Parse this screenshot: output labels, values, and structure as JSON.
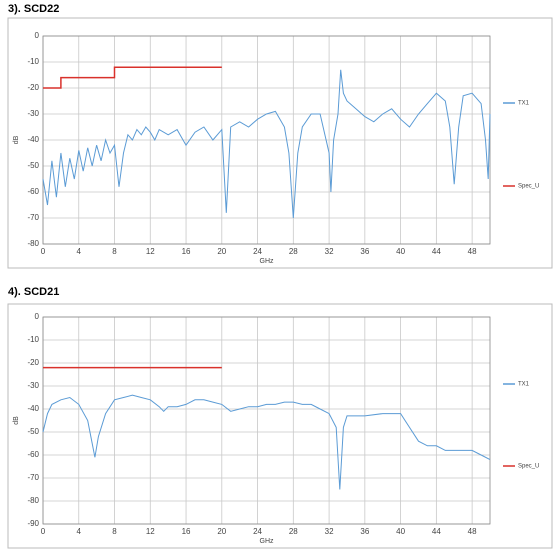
{
  "chart_data": [
    {
      "type": "line",
      "title": "3). SCD22",
      "x_label": "GHz",
      "y_label": "dB",
      "xlim": [
        0,
        50
      ],
      "xticks": [
        0,
        4,
        8,
        12,
        16,
        20,
        24,
        28,
        32,
        36,
        40,
        44,
        48
      ],
      "ylim": [
        -80,
        0
      ],
      "yticks": [
        0,
        -10,
        -20,
        -30,
        -40,
        -50,
        -60,
        -70,
        -80
      ],
      "grid": true,
      "series": [
        {
          "name": "TX1",
          "color": "#5b9bd5",
          "x": [
            0,
            0.5,
            1,
            1.5,
            2,
            2.5,
            3,
            3.5,
            4,
            4.5,
            5,
            5.5,
            6,
            6.5,
            7,
            7.5,
            8,
            8.5,
            9,
            9.5,
            10,
            10.5,
            11,
            11.5,
            12,
            12.5,
            13,
            14,
            15,
            16,
            17,
            18,
            19,
            20,
            20.5,
            21,
            22,
            23,
            24,
            25,
            26,
            27,
            27.5,
            28,
            28.5,
            29,
            30,
            31,
            32,
            32.2,
            32.5,
            33,
            33.3,
            33.6,
            34,
            35,
            36,
            37,
            38,
            39,
            40,
            41,
            42,
            43,
            44,
            45,
            45.5,
            46,
            46.5,
            47,
            48,
            49,
            49.5,
            49.8,
            50
          ],
          "values": [
            -55,
            -65,
            -48,
            -62,
            -45,
            -58,
            -47,
            -55,
            -44,
            -52,
            -43,
            -50,
            -42,
            -48,
            -40,
            -45,
            -42,
            -58,
            -45,
            -38,
            -40,
            -36,
            -38,
            -35,
            -37,
            -40,
            -36,
            -38,
            -36,
            -42,
            -37,
            -35,
            -40,
            -36,
            -68,
            -35,
            -33,
            -35,
            -32,
            -30,
            -29,
            -35,
            -45,
            -70,
            -45,
            -35,
            -30,
            -30,
            -45,
            -60,
            -40,
            -30,
            -13,
            -22,
            -25,
            -28,
            -31,
            -33,
            -30,
            -28,
            -32,
            -35,
            -30,
            -26,
            -22,
            -25,
            -35,
            -57,
            -35,
            -23,
            -22,
            -26,
            -40,
            -55,
            -30
          ]
        },
        {
          "name": "Spec_U",
          "color": "#d9312b",
          "x": [
            0,
            2,
            2,
            8,
            8,
            20
          ],
          "values": [
            -20,
            -20,
            -16,
            -16,
            -12,
            -12
          ]
        }
      ]
    },
    {
      "type": "line",
      "title": "4). SCD21",
      "x_label": "GHz",
      "y_label": "dB",
      "xlim": [
        0,
        50
      ],
      "xticks": [
        0,
        4,
        8,
        12,
        16,
        20,
        24,
        28,
        32,
        36,
        40,
        44,
        48
      ],
      "ylim": [
        -90,
        0
      ],
      "yticks": [
        0,
        -10,
        -20,
        -30,
        -40,
        -50,
        -60,
        -70,
        -80,
        -90
      ],
      "grid": true,
      "series": [
        {
          "name": "TX1",
          "color": "#5b9bd5",
          "x": [
            0,
            0.5,
            1,
            2,
            3,
            4,
            5,
            5.5,
            5.8,
            6.2,
            7,
            8,
            9,
            10,
            11,
            12,
            13,
            13.5,
            14,
            15,
            16,
            17,
            18,
            19,
            20,
            21,
            22,
            23,
            24,
            25,
            26,
            27,
            28,
            29,
            30,
            31,
            32,
            32.8,
            33.2,
            33.6,
            34,
            36,
            38,
            40,
            41,
            42,
            43,
            44,
            45,
            46,
            47,
            48,
            49,
            50
          ],
          "values": [
            -50,
            -42,
            -38,
            -36,
            -35,
            -38,
            -45,
            -55,
            -61,
            -52,
            -42,
            -36,
            -35,
            -34,
            -35,
            -36,
            -39,
            -41,
            -39,
            -39,
            -38,
            -36,
            -36,
            -37,
            -38,
            -41,
            -40,
            -39,
            -39,
            -38,
            -38,
            -37,
            -37,
            -38,
            -38,
            -40,
            -42,
            -48,
            -75,
            -48,
            -43,
            -43,
            -42,
            -42,
            -48,
            -54,
            -56,
            -56,
            -58,
            -58,
            -58,
            -58,
            -60,
            -62
          ]
        },
        {
          "name": "Spec_U",
          "color": "#d9312b",
          "x": [
            0,
            20
          ],
          "values": [
            -22,
            -22
          ]
        }
      ]
    }
  ]
}
